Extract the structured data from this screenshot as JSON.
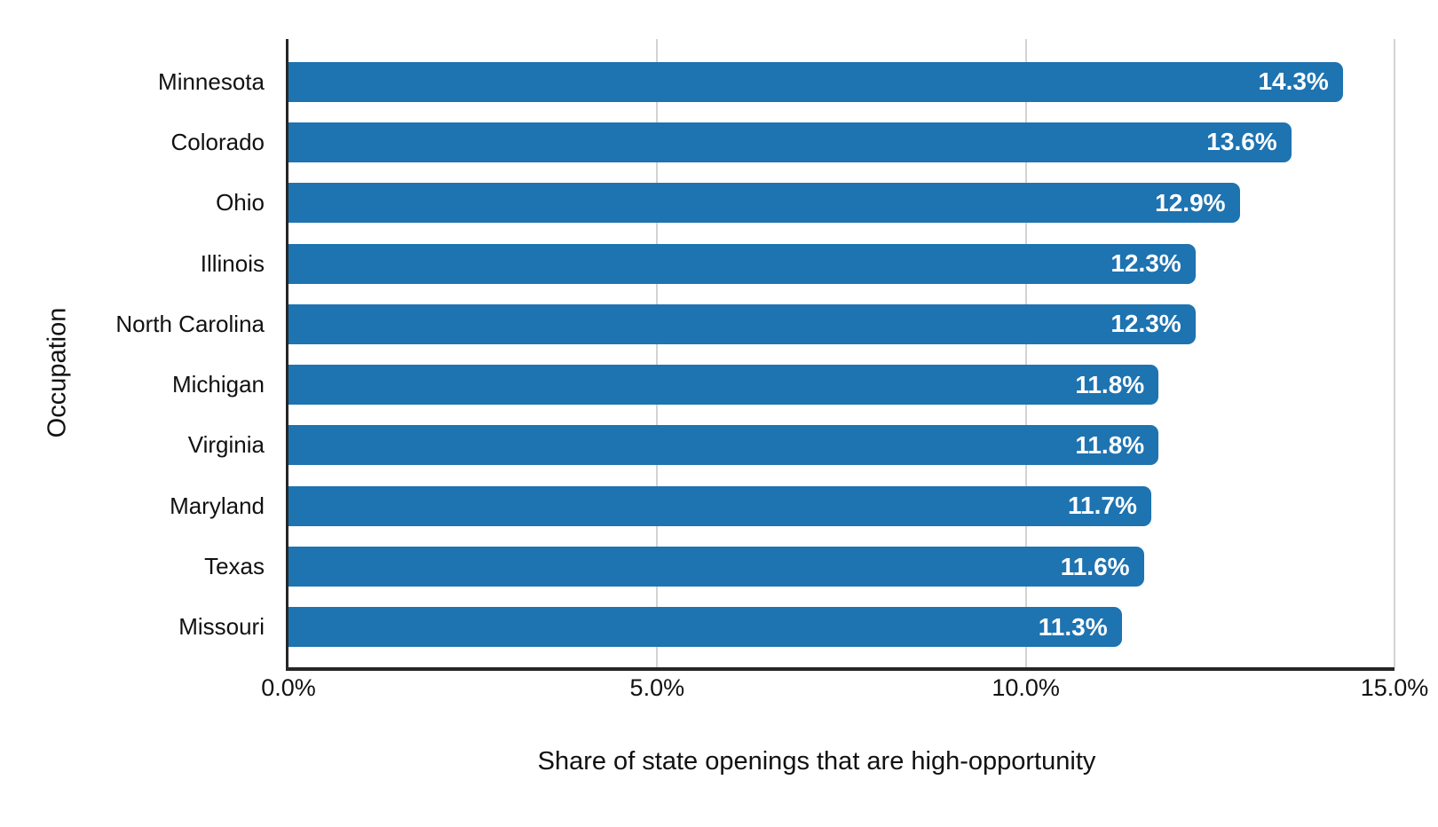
{
  "chart_data": {
    "type": "bar",
    "orientation": "horizontal",
    "xlabel": "Share of state openings that are high-opportunity",
    "ylabel": "Occupation",
    "categories": [
      "Minnesota",
      "Colorado",
      "Ohio",
      "Illinois",
      "North Carolina",
      "Michigan",
      "Virginia",
      "Maryland",
      "Texas",
      "Missouri"
    ],
    "values": [
      14.3,
      13.6,
      12.9,
      12.3,
      12.3,
      11.8,
      11.8,
      11.7,
      11.6,
      11.3
    ],
    "value_labels": [
      "14.3%",
      "13.6%",
      "12.9%",
      "12.3%",
      "12.3%",
      "11.8%",
      "11.8%",
      "11.7%",
      "11.6%",
      "11.3%"
    ],
    "xlim": [
      0,
      15
    ],
    "x_ticks": [
      {
        "value": 0,
        "label": "0.0%"
      },
      {
        "value": 5,
        "label": "5.0%"
      },
      {
        "value": 10,
        "label": "10.0%"
      },
      {
        "value": 15,
        "label": "15.0%"
      }
    ],
    "grid": "vertical-gridlines-at-ticks",
    "legend": "none",
    "colors": {
      "bar": "#1e73b1",
      "value_label": "#ffffff",
      "axis_line": "#262626",
      "gridline": "#d3d3d3",
      "text": "#111111",
      "background": "#ffffff"
    }
  }
}
